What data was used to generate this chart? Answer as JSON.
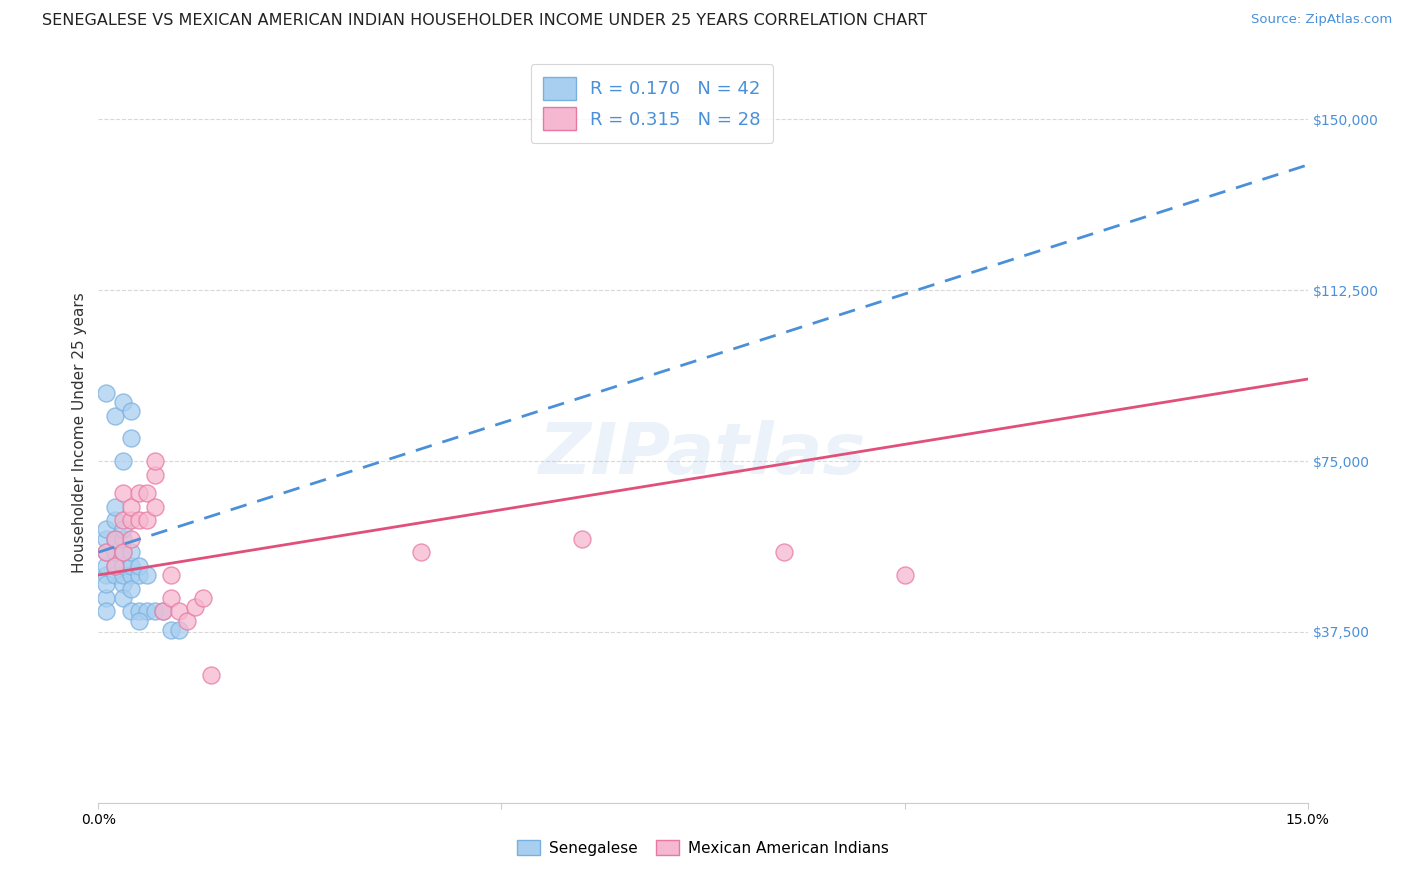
{
  "title": "SENEGALESE VS MEXICAN AMERICAN INDIAN HOUSEHOLDER INCOME UNDER 25 YEARS CORRELATION CHART",
  "source": "Source: ZipAtlas.com",
  "ylabel": "Householder Income Under 25 years",
  "xmin": 0.0,
  "xmax": 0.15,
  "ymin": 0,
  "ymax": 162500,
  "yticks": [
    0,
    37500,
    75000,
    112500,
    150000
  ],
  "ytick_labels": [
    "",
    "$37,500",
    "$75,000",
    "$112,500",
    "$150,000"
  ],
  "xticks": [
    0.0,
    0.05,
    0.1,
    0.15
  ],
  "xtick_labels": [
    "0.0%",
    "",
    "",
    "15.0%"
  ],
  "watermark": "ZIPatlas",
  "blue_scatter_color": "#a8cff0",
  "blue_edge_color": "#7ab0e0",
  "pink_scatter_color": "#f5b8d0",
  "pink_edge_color": "#e878a0",
  "blue_line_color": "#4a90d9",
  "pink_line_color": "#e0507a",
  "background_color": "#ffffff",
  "grid_color": "#d8d8d8",
  "title_fontsize": 11.5,
  "source_fontsize": 9.5,
  "axis_label_fontsize": 11,
  "tick_fontsize": 10,
  "watermark_fontsize": 52,
  "watermark_alpha": 0.25,
  "legend_text_color": "#4a90d9",
  "R_blue": 0.17,
  "N_blue": 42,
  "R_pink": 0.315,
  "N_pink": 28,
  "blue_x": [
    0.001,
    0.001,
    0.001,
    0.001,
    0.001,
    0.001,
    0.001,
    0.001,
    0.002,
    0.002,
    0.002,
    0.002,
    0.002,
    0.002,
    0.003,
    0.003,
    0.003,
    0.003,
    0.003,
    0.003,
    0.003,
    0.004,
    0.004,
    0.004,
    0.004,
    0.004,
    0.005,
    0.005,
    0.005,
    0.006,
    0.006,
    0.007,
    0.008,
    0.009,
    0.01,
    0.001,
    0.002,
    0.003,
    0.004,
    0.003,
    0.004,
    0.005
  ],
  "blue_y": [
    50000,
    52000,
    55000,
    58000,
    60000,
    45000,
    48000,
    42000,
    50000,
    52000,
    55000,
    58000,
    62000,
    65000,
    48000,
    50000,
    52000,
    55000,
    58000,
    60000,
    45000,
    50000,
    52000,
    55000,
    42000,
    47000,
    50000,
    52000,
    42000,
    50000,
    42000,
    42000,
    42000,
    38000,
    38000,
    90000,
    85000,
    88000,
    86000,
    75000,
    80000,
    40000
  ],
  "pink_x": [
    0.001,
    0.002,
    0.002,
    0.003,
    0.003,
    0.003,
    0.004,
    0.004,
    0.004,
    0.005,
    0.005,
    0.006,
    0.006,
    0.007,
    0.007,
    0.007,
    0.008,
    0.009,
    0.009,
    0.01,
    0.011,
    0.012,
    0.013,
    0.014,
    0.04,
    0.06,
    0.085,
    0.1
  ],
  "pink_y": [
    55000,
    52000,
    58000,
    55000,
    62000,
    68000,
    58000,
    62000,
    65000,
    62000,
    68000,
    62000,
    68000,
    72000,
    65000,
    75000,
    42000,
    45000,
    50000,
    42000,
    40000,
    43000,
    45000,
    28000,
    55000,
    58000,
    55000,
    50000
  ]
}
